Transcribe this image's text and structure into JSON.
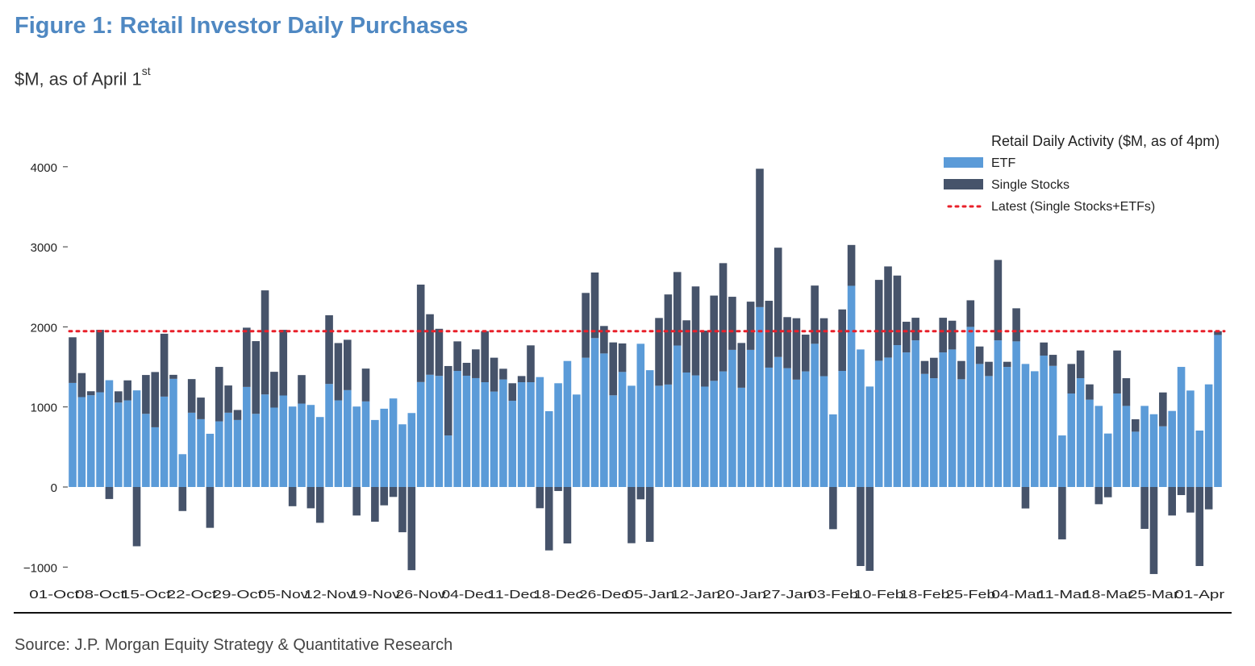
{
  "header": {
    "title": "Figure 1: Retail Investor Daily Purchases",
    "subtitle": "$M, as of April 1",
    "subtitle_sup": "st"
  },
  "footer": {
    "source": "Source: J.P. Morgan Equity Strategy & Quantitative Research"
  },
  "chart_data": {
    "type": "bar",
    "stacked": true,
    "title": "",
    "xlabel": "",
    "ylabel": "",
    "ylim": [
      -1100,
      4100
    ],
    "y_ticks": [
      -1000,
      0,
      1000,
      2000,
      3000,
      4000
    ],
    "y_tick_labels": [
      "−1000",
      "0",
      "1000",
      "2000",
      "3000",
      "4000"
    ],
    "x_tick_labels": [
      "01-Oct",
      "08-Oct",
      "15-Oct",
      "22-Oct",
      "29-Oct",
      "05-Nov",
      "12-Nov",
      "19-Nov",
      "26-Nov",
      "04-Dec",
      "11-Dec",
      "18-Dec",
      "26-Dec",
      "05-Jan",
      "12-Jan",
      "20-Jan",
      "27-Jan",
      "03-Feb",
      "10-Feb",
      "18-Feb",
      "25-Feb",
      "04-Mar",
      "11-Mar",
      "18-Mar",
      "25-Mar",
      "01-Apr"
    ],
    "grid": false,
    "legend": {
      "title": "Retail Daily Activity ($M, as of 4pm)",
      "placement": "top-right",
      "entries": [
        "ETF",
        "Single Stocks",
        "Latest (Single Stocks+ETFs)"
      ]
    },
    "colors": {
      "ETF": "#5b9bd8",
      "Single Stocks": "#46536a",
      "Latest": "#e8202a"
    },
    "latest_total": 1946,
    "series": [
      {
        "name": "ETF",
        "values": [
          1300,
          1123,
          1146,
          1183,
          1334,
          1055,
          1082,
          1207,
          914,
          746,
          1129,
          1351,
          410,
          928,
          847,
          665,
          820,
          928,
          837,
          1250,
          914,
          1156,
          992,
          1143,
          1005,
          1042,
          1025,
          874,
          1287,
          1082,
          1210,
          1005,
          1069,
          837,
          978,
          1106,
          783,
          924,
          1311,
          1402,
          1388,
          644,
          1450,
          1390,
          1360,
          1309,
          1192,
          1343,
          1077,
          1309,
          1309,
          1373,
          947,
          1296,
          1574,
          1155,
          1615,
          1860,
          1668,
          1145,
          1437,
          1265,
          1789,
          1459,
          1265,
          1280,
          1767,
          1430,
          1394,
          1254,
          1326,
          1444,
          1713,
          1240,
          1713,
          2247,
          1491,
          1624,
          1484,
          1341,
          1444,
          1789,
          1384,
          907,
          1450,
          2513,
          1718,
          1255,
          1577,
          1617,
          1772,
          1681,
          1832,
          1413,
          1359,
          1681,
          1718,
          1346,
          2000,
          1537,
          1386,
          1832,
          1500,
          1819,
          1537,
          1446,
          1641,
          1513,
          644,
          1168,
          1359,
          1091,
          1013,
          668,
          1168,
          1013,
          691,
          1013,
          909,
          758,
          950,
          1500,
          1205,
          705,
          1282,
          1899
        ]
      },
      {
        "name": "Single Stocks",
        "values": [
          570,
          300,
          50,
          780,
          -150,
          140,
          250,
          -740,
          485,
          690,
          785,
          50,
          -300,
          420,
          270,
          -510,
          680,
          340,
          125,
          740,
          908,
          1300,
          447,
          820,
          -240,
          356,
          -266,
          -447,
          858,
          716,
          629,
          -356,
          410,
          -434,
          -229,
          -124,
          -565,
          -1039,
          1217,
          756,
          588,
          867,
          369,
          161,
          359,
          638,
          423,
          134,
          219,
          77,
          460,
          -265,
          -792,
          -50,
          -705,
          0,
          809,
          819,
          343,
          661,
          356,
          -702,
          -154,
          -685,
          846,
          1125,
          918,
          652,
          1111,
          699,
          1065,
          1352,
          663,
          559,
          602,
          1728,
          835,
          1365,
          638,
          767,
          459,
          727,
          724,
          -527,
          768,
          510,
          -987,
          -1047,
          1010,
          1138,
          869,
          383,
          282,
          161,
          255,
          433,
          359,
          228,
          332,
          218,
          178,
          1004,
          64,
          413,
          -268,
          0,
          164,
          138,
          -654,
          369,
          346,
          191,
          -215,
          -128,
          537,
          346,
          155,
          -523,
          -1087,
          423,
          -356,
          -101,
          -319,
          -987,
          -279,
          47
        ]
      }
    ]
  }
}
